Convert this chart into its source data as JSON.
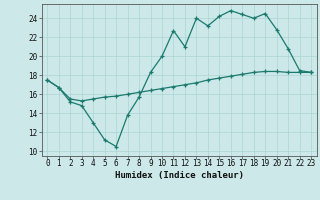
{
  "xlabel": "Humidex (Indice chaleur)",
  "ylabel": "",
  "background_color": "#cce8e8",
  "line_color": "#1a7a6e",
  "xlim": [
    -0.5,
    23.5
  ],
  "ylim": [
    9.5,
    25.5
  ],
  "yticks": [
    10,
    12,
    14,
    16,
    18,
    20,
    22,
    24
  ],
  "xticks": [
    0,
    1,
    2,
    3,
    4,
    5,
    6,
    7,
    8,
    9,
    10,
    11,
    12,
    13,
    14,
    15,
    16,
    17,
    18,
    19,
    20,
    21,
    22,
    23
  ],
  "series1_x": [
    0,
    1,
    2,
    3,
    4,
    5,
    6,
    7,
    8,
    9,
    10,
    11,
    12,
    13,
    14,
    15,
    16,
    17,
    18,
    19,
    20,
    21,
    22,
    23
  ],
  "series1_y": [
    17.5,
    16.7,
    15.2,
    14.8,
    13.0,
    11.2,
    10.5,
    13.8,
    15.7,
    18.3,
    20.0,
    22.7,
    21.0,
    24.0,
    23.2,
    24.2,
    24.8,
    24.4,
    24.0,
    24.5,
    22.8,
    20.8,
    18.5,
    18.3
  ],
  "series2_x": [
    0,
    1,
    2,
    3,
    4,
    5,
    6,
    7,
    8,
    9,
    10,
    11,
    12,
    13,
    14,
    15,
    16,
    17,
    18,
    19,
    20,
    21,
    22,
    23
  ],
  "series2_y": [
    17.5,
    16.7,
    15.5,
    15.3,
    15.5,
    15.7,
    15.8,
    16.0,
    16.2,
    16.4,
    16.6,
    16.8,
    17.0,
    17.2,
    17.5,
    17.7,
    17.9,
    18.1,
    18.3,
    18.4,
    18.4,
    18.3,
    18.3,
    18.3
  ]
}
